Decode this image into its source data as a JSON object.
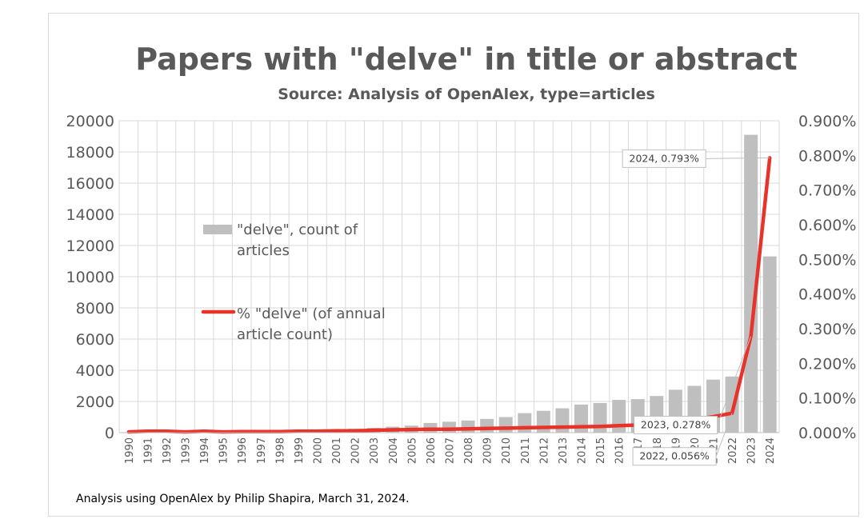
{
  "chart_data": {
    "type": "bar+line",
    "title": "Papers with \"delve\" in title or abstract",
    "subtitle": "Source: Analysis of OpenAlex, type=articles",
    "footnote": "Analysis using OpenAlex by Philip Shapira, March 31, 2024.",
    "categories": [
      "1990",
      "1991",
      "1992",
      "1993",
      "1994",
      "1995",
      "1996",
      "1997",
      "1998",
      "1999",
      "2000",
      "2001",
      "2002",
      "2003",
      "2004",
      "2005",
      "2006",
      "2007",
      "2008",
      "2009",
      "2010",
      "2011",
      "2012",
      "2013",
      "2014",
      "2015",
      "2016",
      "2017",
      "2018",
      "2019",
      "2020",
      "2021",
      "2022",
      "2023",
      "2024"
    ],
    "y_left": {
      "min": 0,
      "max": 20000,
      "step": 2000,
      "ticks": [
        "0",
        "2000",
        "4000",
        "6000",
        "8000",
        "10000",
        "12000",
        "14000",
        "16000",
        "18000",
        "20000"
      ]
    },
    "y_right": {
      "min": 0,
      "max": 0.9,
      "step": 0.1,
      "ticks": [
        "0.000%",
        "0.100%",
        "0.200%",
        "0.300%",
        "0.400%",
        "0.500%",
        "0.600%",
        "0.700%",
        "0.800%",
        "0.900%"
      ]
    },
    "grid": true,
    "series": [
      {
        "name": "\"delve\", count of articles",
        "legend_lines": [
          "\"delve\", count of",
          "articles"
        ],
        "type": "bar",
        "axis": "left",
        "color": "#bfbfbf",
        "values": [
          30,
          40,
          50,
          60,
          70,
          90,
          100,
          120,
          140,
          160,
          180,
          200,
          250,
          300,
          380,
          450,
          620,
          700,
          780,
          880,
          1000,
          1250,
          1400,
          1560,
          1800,
          1900,
          2100,
          2150,
          2350,
          2750,
          3000,
          3400,
          3600,
          19100,
          11300
        ]
      },
      {
        "name": "% \"delve\" (of annual article count)",
        "legend_lines": [
          "% \"delve\" (of annual",
          "article count)"
        ],
        "type": "line",
        "axis": "right",
        "color": "#e8332a",
        "values": [
          0.002,
          0.004,
          0.004,
          0.002,
          0.004,
          0.002,
          0.003,
          0.003,
          0.003,
          0.004,
          0.004,
          0.005,
          0.005,
          0.007,
          0.008,
          0.009,
          0.01,
          0.01,
          0.011,
          0.012,
          0.013,
          0.014,
          0.015,
          0.016,
          0.017,
          0.018,
          0.02,
          0.022,
          0.025,
          0.03,
          0.038,
          0.046,
          0.056,
          0.278,
          0.793
        ]
      }
    ],
    "annotations": [
      {
        "text": "2024, 0.793%",
        "category": "2024"
      },
      {
        "text": "2023, 0.278%",
        "category": "2023"
      },
      {
        "text": "2022, 0.056%",
        "category": "2022"
      }
    ]
  }
}
